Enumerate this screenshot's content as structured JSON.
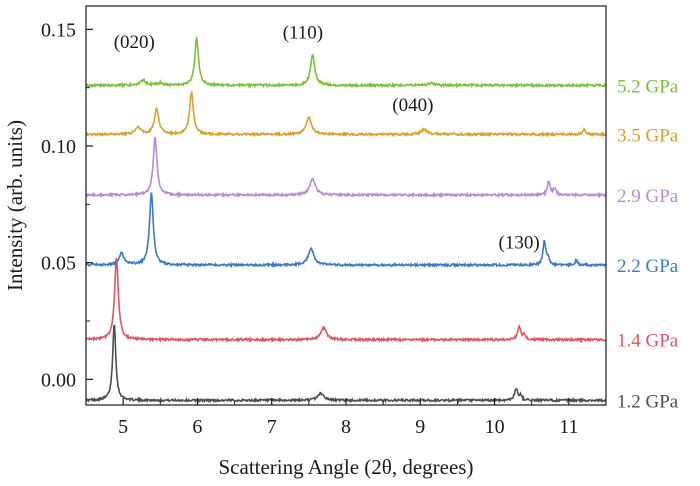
{
  "chart_data": {
    "type": "line",
    "xlabel": "Scattering Angle (2θ, degrees)",
    "ylabel": "Intensity (arb. units)",
    "xlim": [
      4.5,
      11.5
    ],
    "ylim": [
      -0.011,
      0.16
    ],
    "xticks": [
      5,
      6,
      7,
      8,
      9,
      10,
      11
    ],
    "yticks": [
      0.0,
      0.05,
      0.1,
      0.15
    ],
    "ytick_labels": [
      "0.00",
      "0.05",
      "0.10",
      "0.15"
    ],
    "grid": false,
    "legend_placement": "right, next to each trace",
    "series": [
      {
        "name": "1.2 GPa",
        "color": "#4d4d4d",
        "baseline": -0.009,
        "peaks": [
          [
            4.88,
            0.033,
            0.025
          ],
          [
            7.66,
            0.003,
            0.05
          ],
          [
            10.29,
            0.005,
            0.025
          ],
          [
            10.35,
            0.002,
            0.02
          ]
        ]
      },
      {
        "name": "1.4 GPa",
        "color": "#e0545f",
        "baseline": 0.017,
        "peaks": [
          [
            4.91,
            0.035,
            0.03
          ],
          [
            7.7,
            0.005,
            0.045
          ],
          [
            10.33,
            0.006,
            0.025
          ],
          [
            10.4,
            0.002,
            0.02
          ]
        ]
      },
      {
        "name": "2.2 GPa",
        "color": "#3a79c9",
        "baseline": 0.049,
        "peaks": [
          [
            4.98,
            0.005,
            0.04
          ],
          [
            5.38,
            0.031,
            0.03
          ],
          [
            7.53,
            0.007,
            0.045
          ],
          [
            10.67,
            0.01,
            0.022
          ],
          [
            10.72,
            0.003,
            0.02
          ],
          [
            11.1,
            0.002,
            0.02
          ]
        ]
      },
      {
        "name": "2.9 GPa",
        "color": "#b88ad0",
        "baseline": 0.079,
        "peaks": [
          [
            5.43,
            0.025,
            0.03
          ],
          [
            7.55,
            0.007,
            0.045
          ],
          [
            10.73,
            0.006,
            0.022
          ],
          [
            10.81,
            0.003,
            0.02
          ]
        ]
      },
      {
        "name": "3.5 GPa",
        "color": "#d6a22c",
        "baseline": 0.105,
        "peaks": [
          [
            5.2,
            0.003,
            0.04
          ],
          [
            5.45,
            0.011,
            0.035
          ],
          [
            5.92,
            0.018,
            0.03
          ],
          [
            7.5,
            0.007,
            0.045
          ],
          [
            9.05,
            0.002,
            0.05
          ],
          [
            11.2,
            0.002,
            0.025
          ]
        ]
      },
      {
        "name": "5.2 GPa",
        "color": "#7cbf3a",
        "baseline": 0.126,
        "peaks": [
          [
            5.27,
            0.002,
            0.05
          ],
          [
            5.5,
            0.001,
            0.05
          ],
          [
            5.99,
            0.02,
            0.03
          ],
          [
            7.55,
            0.013,
            0.035
          ],
          [
            9.15,
            0.001,
            0.05
          ]
        ]
      }
    ],
    "annotations": [
      {
        "text": "(020)",
        "x": 5.15,
        "y": 0.142
      },
      {
        "text": "(110)",
        "x": 7.42,
        "y": 0.146
      },
      {
        "text": "(040)",
        "x": 8.9,
        "y": 0.115
      },
      {
        "text": "(130)",
        "x": 10.33,
        "y": 0.056
      }
    ]
  }
}
